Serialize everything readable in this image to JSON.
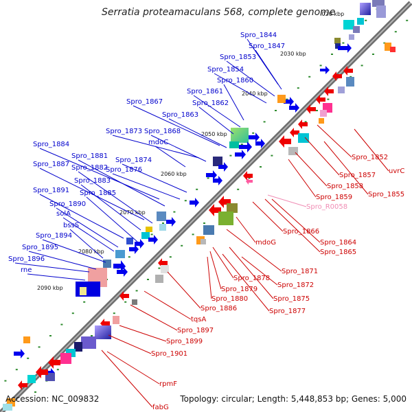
{
  "title": "Serratia proteamaculans 568, complete genome",
  "footer": {
    "accession": "Accession: NC_009832",
    "summary": "Topology: circular; Length: 5,448,853 bp; Genes: 5,000"
  },
  "colors": {
    "backbone": "#8a8a8a",
    "forward_label": "#0000cc",
    "reverse_label": "#cc0000",
    "rna_label": "#f08cb4",
    "cds_forward": "#0000ee",
    "cds_reverse": "#ee0000",
    "tick": "#2e8b2e"
  },
  "scale_labels": [
    ".020 kbp",
    "2030 kbp",
    "2040 kbp",
    "2050 kbp",
    "2060 kbp",
    "2070 kbp",
    "2080 kbp",
    "2090 kbp"
  ],
  "forward_labels": [
    "Spro_1844",
    "Spro_1847",
    "Spro_1853",
    "Spro_1854",
    "Spro_1860",
    "Spro_1861",
    "Spro_1862",
    "Spro_1867",
    "Spro_1863",
    "Spro_1873",
    "Spro_1868",
    "mdoC",
    "Spro_1884",
    "Spro_1881",
    "Spro_1874",
    "Spro_1887",
    "Spro_1882",
    "Spro_1876",
    "Spro_1883",
    "Spro_1891",
    "Spro_1885",
    "Spro_1890",
    "solA",
    "bssS",
    "Spro_1894",
    "Spro_1895",
    "Spro_1896",
    "rne"
  ],
  "reverse_labels": [
    "Spro_1852",
    "uvrC",
    "Spro_1857",
    "Spro_1858",
    "Spro_1855",
    "Spro_1859",
    "Spro_1866",
    "mdoG",
    "Spro_1864",
    "Spro_1865",
    "Spro_1871",
    "Spro_1878",
    "Spro_1872",
    "Spro_1879",
    "Spro_1875",
    "Spro_1880",
    "Spro_1877",
    "Spro_1886",
    "tqsA",
    "Spro_1897",
    "Spro_1899",
    "Spro_1901",
    "rpmF",
    "fabG"
  ],
  "rna_labels": [
    "Spro_R0058"
  ]
}
